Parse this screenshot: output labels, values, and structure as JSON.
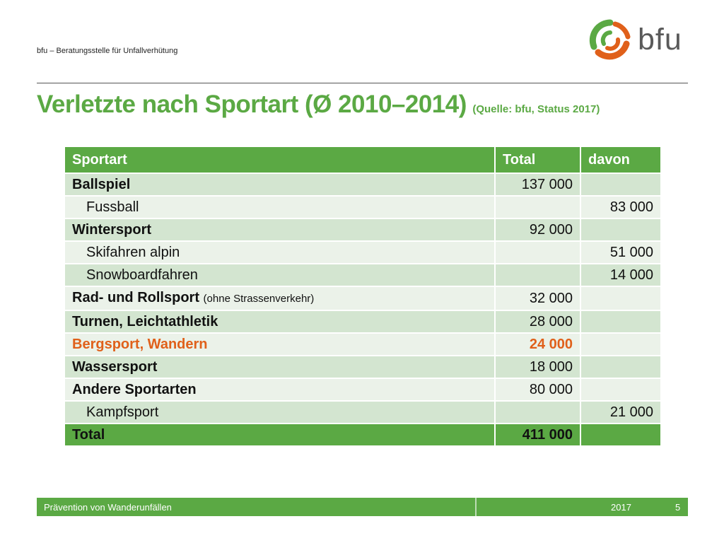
{
  "header": {
    "org_name": "bfu – Beratungsstelle für Unfallverhütung",
    "logo_text": "bfu"
  },
  "title": {
    "main": "Verletzte nach Sportart (Ø 2010–2014)",
    "source": "(Quelle: bfu, Status 2017)"
  },
  "table": {
    "headers": [
      "Sportart",
      "Total",
      "davon"
    ],
    "rows": [
      {
        "label": "Ballspiel",
        "note": "",
        "total": "137 000",
        "davon": ""
      },
      {
        "label": "Fussball",
        "note": "",
        "total": "",
        "davon": "83 000"
      },
      {
        "label": "Wintersport",
        "note": "",
        "total": "92 000",
        "davon": ""
      },
      {
        "label": "Skifahren alpin",
        "note": "",
        "total": "",
        "davon": "51 000"
      },
      {
        "label": "Snowboardfahren",
        "note": "",
        "total": "",
        "davon": "14 000"
      },
      {
        "label": "Rad- und Rollsport",
        "note": "(ohne Strassenverkehr)",
        "total": "32 000",
        "davon": ""
      },
      {
        "label": "Turnen, Leichtathletik",
        "note": "",
        "total": "28 000",
        "davon": ""
      },
      {
        "label": "Bergsport, Wandern",
        "note": "",
        "total": "24 000",
        "davon": ""
      },
      {
        "label": "Wassersport",
        "note": "",
        "total": "18 000",
        "davon": ""
      },
      {
        "label": "Andere Sportarten",
        "note": "",
        "total": "80 000",
        "davon": ""
      },
      {
        "label": "Kampfsport",
        "note": "",
        "total": "",
        "davon": "21 000"
      },
      {
        "label": "Total",
        "note": "",
        "total": "411 000",
        "davon": ""
      }
    ]
  },
  "footer": {
    "title": "Prävention von Wanderunfällen",
    "year": "2017",
    "page": "5"
  },
  "colors": {
    "brand_green": "#5ba944",
    "highlight_orange": "#e0601a",
    "row_dark": "#d3e5d0",
    "row_light": "#ebf2e9"
  }
}
